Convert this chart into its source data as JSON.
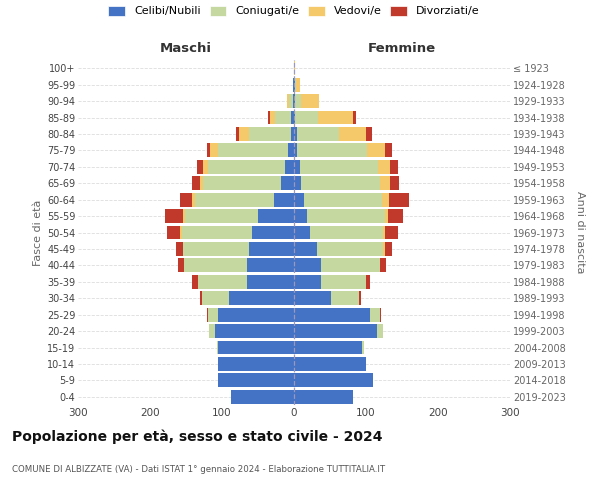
{
  "age_groups": [
    "0-4",
    "5-9",
    "10-14",
    "15-19",
    "20-24",
    "25-29",
    "30-34",
    "35-39",
    "40-44",
    "45-49",
    "50-54",
    "55-59",
    "60-64",
    "65-69",
    "70-74",
    "75-79",
    "80-84",
    "85-89",
    "90-94",
    "95-99",
    "100+"
  ],
  "birth_years": [
    "2019-2023",
    "2014-2018",
    "2009-2013",
    "2004-2008",
    "1999-2003",
    "1994-1998",
    "1989-1993",
    "1984-1988",
    "1979-1983",
    "1974-1978",
    "1969-1973",
    "1964-1968",
    "1959-1963",
    "1954-1958",
    "1949-1953",
    "1944-1948",
    "1939-1943",
    "1934-1938",
    "1929-1933",
    "1924-1928",
    "≤ 1923"
  ],
  "colors": {
    "celibe": "#4472c4",
    "coniugato": "#c5d8a0",
    "vedovo": "#f5c96a",
    "divorziato": "#c0392b"
  },
  "maschi": {
    "celibe": [
      88,
      105,
      105,
      105,
      110,
      105,
      90,
      65,
      65,
      62,
      58,
      50,
      28,
      18,
      12,
      8,
      4,
      4,
      2,
      1,
      0
    ],
    "coniugato": [
      0,
      0,
      0,
      2,
      8,
      14,
      38,
      68,
      88,
      92,
      98,
      102,
      110,
      108,
      108,
      98,
      58,
      22,
      5,
      0,
      0
    ],
    "vedovo": [
      0,
      0,
      0,
      0,
      0,
      0,
      0,
      0,
      0,
      0,
      2,
      2,
      3,
      5,
      7,
      10,
      14,
      8,
      3,
      0,
      0
    ],
    "divorziato": [
      0,
      0,
      0,
      0,
      0,
      2,
      2,
      8,
      8,
      10,
      18,
      25,
      18,
      10,
      8,
      5,
      4,
      2,
      0,
      0,
      0
    ]
  },
  "femmine": {
    "nubile": [
      82,
      110,
      100,
      95,
      115,
      105,
      52,
      38,
      38,
      32,
      22,
      18,
      14,
      10,
      8,
      4,
      4,
      2,
      2,
      1,
      0
    ],
    "coniugata": [
      0,
      0,
      0,
      2,
      8,
      14,
      38,
      62,
      82,
      92,
      102,
      108,
      108,
      110,
      108,
      98,
      58,
      32,
      8,
      2,
      0
    ],
    "vedova": [
      0,
      0,
      0,
      0,
      0,
      0,
      0,
      0,
      0,
      2,
      3,
      5,
      10,
      14,
      18,
      24,
      38,
      48,
      25,
      5,
      1
    ],
    "divorziata": [
      0,
      0,
      0,
      0,
      0,
      2,
      3,
      5,
      8,
      10,
      18,
      20,
      28,
      12,
      10,
      10,
      8,
      4,
      0,
      0,
      0
    ]
  },
  "title": "Popolazione per età, sesso e stato civile - 2024",
  "subtitle": "COMUNE DI ALBIZZATE (VA) - Dati ISTAT 1° gennaio 2024 - Elaborazione TUTTITALIA.IT",
  "xlabel_left": "Maschi",
  "xlabel_right": "Femmine",
  "ylabel_left": "Fasce di età",
  "ylabel_right": "Anni di nascita",
  "xlim": 300,
  "legend_labels": [
    "Celibi/Nubili",
    "Coniugati/e",
    "Vedovi/e",
    "Divorziati/e"
  ],
  "bg_color": "#ffffff",
  "grid_color": "#dddddd"
}
